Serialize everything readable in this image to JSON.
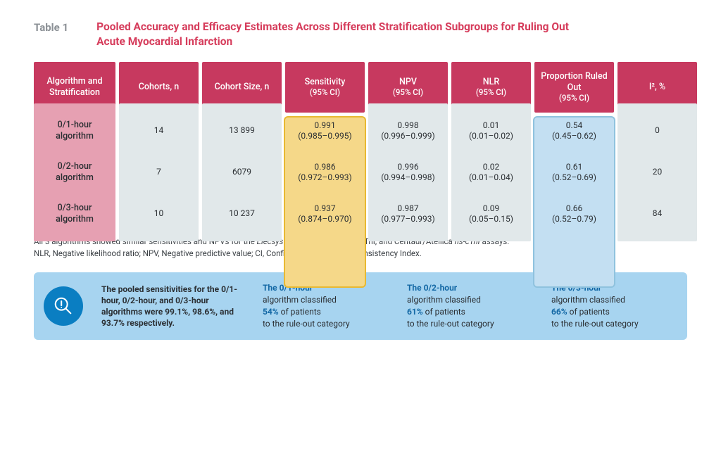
{
  "title": {
    "label": "Table 1",
    "text": "Pooled Accuracy and Efficacy Estimates Across Different Stratification Subgroups for Ruling Out Acute Myocardial Infarction"
  },
  "table": {
    "header_bg": "#c7395f",
    "rowhead_bg": "#e6a0b2",
    "cell_bg": "#e1e8ea",
    "highlight": {
      "sensitivity": {
        "bg": "#f5d889",
        "border": "#e8b932"
      },
      "proportion": {
        "bg": "#c3dff2",
        "border": "#8fc2de"
      }
    },
    "columns": [
      {
        "label": "Algorithm and Stratification"
      },
      {
        "label": "Cohorts, n"
      },
      {
        "label": "Cohort Size, n"
      },
      {
        "label": "Sensitivity",
        "sub": "(95% CI)",
        "highlight": "sensitivity"
      },
      {
        "label": "NPV",
        "sub": "(95% CI)"
      },
      {
        "label": "NLR",
        "sub": "(95% CI)"
      },
      {
        "label": "Proportion Ruled Out",
        "sub": "(95% CI)",
        "highlight": "proportion"
      },
      {
        "label": "I², %"
      }
    ],
    "rows": [
      {
        "head": "0/1-hour algorithm",
        "cohorts_n": "14",
        "cohort_size": "13 899",
        "sensitivity": {
          "val": "0.991",
          "ci": "(0.985–0.995)"
        },
        "npv": {
          "val": "0.998",
          "ci": "(0.996–0.999)"
        },
        "nlr": {
          "val": "0.01",
          "ci": "(0.01–0.02)"
        },
        "proportion": {
          "val": "0.54",
          "ci": "(0.45–0.62)"
        },
        "i2": "0"
      },
      {
        "head": "0/2-hour algorithm",
        "cohorts_n": "7",
        "cohort_size": "6079",
        "sensitivity": {
          "val": "0.986",
          "ci": "(0.972–0.993)"
        },
        "npv": {
          "val": "0.996",
          "ci": "(0.994–0.998)"
        },
        "nlr": {
          "val": "0.02",
          "ci": "(0.01–0.04)"
        },
        "proportion": {
          "val": "0.61",
          "ci": "(0.52–0.69)"
        },
        "i2": "20"
      },
      {
        "head": "0/3-hour algorithm",
        "cohorts_n": "10",
        "cohort_size": "10 237",
        "sensitivity": {
          "val": "0.937",
          "ci": "(0.874–0.970)"
        },
        "npv": {
          "val": "0.987",
          "ci": "(0.977–0.993)"
        },
        "nlr": {
          "val": "0.09",
          "ci": "(0.05–0.15)"
        },
        "proportion": {
          "val": "0.66",
          "ci": "(0.52–0.79)"
        },
        "i2": "84"
      }
    ]
  },
  "footnotes": {
    "line1_pre": "All 3 algorithms showed similar sensitivities and NPVs for the ",
    "line1_it1": "Elecsys hs-cTnT",
    "line1_mid": ", Architect hscTnI, and Centaur/Atellica ",
    "line1_it2": "hs-cTnI",
    "line1_end": " assays.",
    "line2": "NLR, Negative likelihood ratio; NPV, Negative predictive value; CI, Confidence Interval; I², Inconsistency Index."
  },
  "info": {
    "icon_bg": "#0a7ec2",
    "panel_bg": "#a7d4f0",
    "summary": "The pooled sensitivities for the 0/1-hour, 0/2-hour, and 0/3-hour algorithms were 99.1%, 98.6%, and 93.7% respectively.",
    "blocks": [
      {
        "lead": "The 0/1-hour",
        "mid1": "algorithm classified",
        "pct": "54%",
        "mid2": "of patients",
        "tail": "to the rule-out category"
      },
      {
        "lead": "The 0/2-hour",
        "mid1": "algorithm classified",
        "pct": "61%",
        "mid2": "of patients",
        "tail": "to the rule-out category"
      },
      {
        "lead": "The 0/3-hour",
        "mid1": "algorithm classified",
        "pct": "66%",
        "mid2": "of patients",
        "tail": "to the rule-out category"
      }
    ]
  }
}
